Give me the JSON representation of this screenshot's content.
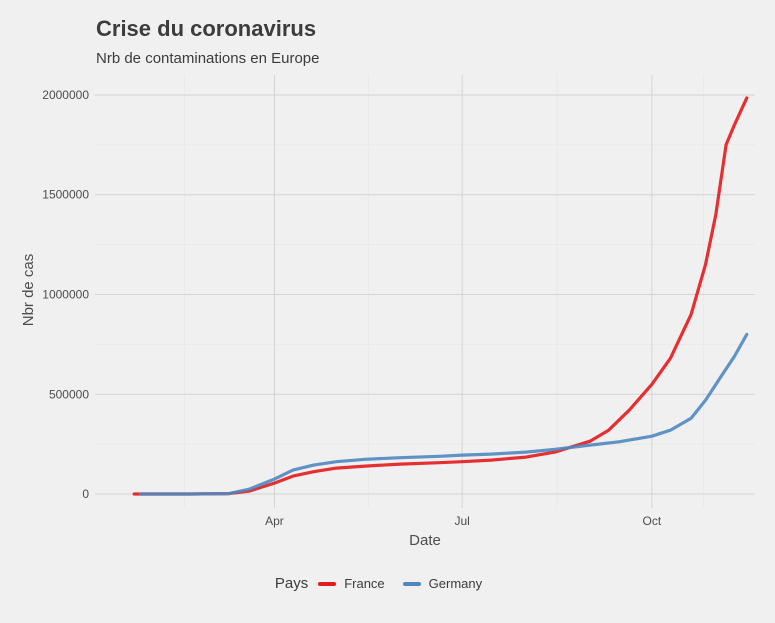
{
  "chart_data": {
    "type": "line",
    "title": "Crise du coronavirus",
    "subtitle": "Nrb de contaminations en Europe",
    "xlabel": "Date",
    "ylabel": "Nbr de cas",
    "x_ticks": [
      {
        "date": "2020-04-01",
        "label": "Apr"
      },
      {
        "date": "2020-07-01",
        "label": "Jul"
      },
      {
        "date": "2020-10-01",
        "label": "Oct"
      }
    ],
    "y_ticks": [
      0,
      500000,
      1000000,
      1500000,
      2000000
    ],
    "xlim": [
      "2020-01-05",
      "2020-11-20"
    ],
    "ylim": [
      -70000,
      2100000
    ],
    "grid": true,
    "legend": {
      "title": "Pays",
      "position": "bottom"
    },
    "series": [
      {
        "name": "France",
        "color": "#e41a1c",
        "points": [
          [
            "2020-01-24",
            0
          ],
          [
            "2020-02-20",
            0
          ],
          [
            "2020-03-10",
            2000
          ],
          [
            "2020-03-20",
            15000
          ],
          [
            "2020-04-01",
            55000
          ],
          [
            "2020-04-10",
            90000
          ],
          [
            "2020-04-20",
            112000
          ],
          [
            "2020-05-01",
            130000
          ],
          [
            "2020-05-15",
            140000
          ],
          [
            "2020-06-01",
            150000
          ],
          [
            "2020-06-20",
            157000
          ],
          [
            "2020-07-01",
            162000
          ],
          [
            "2020-07-15",
            170000
          ],
          [
            "2020-08-01",
            185000
          ],
          [
            "2020-08-15",
            210000
          ],
          [
            "2020-09-01",
            265000
          ],
          [
            "2020-09-10",
            320000
          ],
          [
            "2020-09-20",
            420000
          ],
          [
            "2020-10-01",
            550000
          ],
          [
            "2020-10-10",
            680000
          ],
          [
            "2020-10-20",
            900000
          ],
          [
            "2020-10-27",
            1150000
          ],
          [
            "2020-11-01",
            1400000
          ],
          [
            "2020-11-06",
            1750000
          ],
          [
            "2020-11-10",
            1850000
          ],
          [
            "2020-11-16",
            1985000
          ]
        ]
      },
      {
        "name": "Germany",
        "color": "#4f88c0",
        "points": [
          [
            "2020-01-27",
            0
          ],
          [
            "2020-02-20",
            0
          ],
          [
            "2020-03-10",
            2000
          ],
          [
            "2020-03-20",
            25000
          ],
          [
            "2020-04-01",
            75000
          ],
          [
            "2020-04-10",
            120000
          ],
          [
            "2020-04-20",
            145000
          ],
          [
            "2020-05-01",
            162000
          ],
          [
            "2020-05-15",
            174000
          ],
          [
            "2020-06-01",
            182000
          ],
          [
            "2020-06-20",
            189000
          ],
          [
            "2020-07-01",
            195000
          ],
          [
            "2020-07-15",
            200000
          ],
          [
            "2020-08-01",
            210000
          ],
          [
            "2020-08-15",
            224000
          ],
          [
            "2020-09-01",
            245000
          ],
          [
            "2020-09-15",
            262000
          ],
          [
            "2020-10-01",
            290000
          ],
          [
            "2020-10-10",
            320000
          ],
          [
            "2020-10-20",
            380000
          ],
          [
            "2020-10-27",
            470000
          ],
          [
            "2020-11-03",
            580000
          ],
          [
            "2020-11-10",
            690000
          ],
          [
            "2020-11-16",
            800000
          ]
        ]
      }
    ]
  }
}
